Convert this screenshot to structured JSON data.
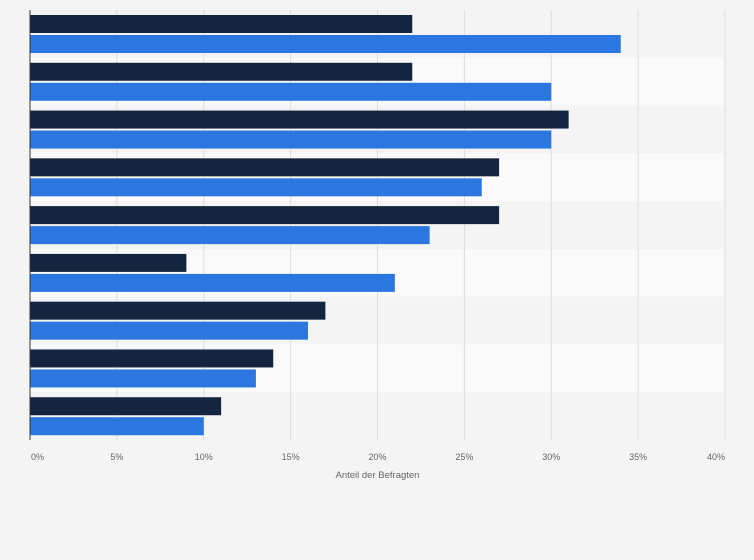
{
  "chart_data": {
    "type": "bar",
    "orientation": "horizontal",
    "categories": [
      "",
      "",
      "",
      "",
      "",
      "",
      "",
      "",
      ""
    ],
    "series": [
      {
        "color": "#14253f",
        "values": [
          22,
          22,
          31,
          27,
          27,
          9,
          17,
          14,
          11
        ]
      },
      {
        "color": "#2b77df",
        "values": [
          34,
          30,
          30,
          26,
          23,
          21,
          16,
          13,
          10
        ]
      }
    ],
    "xlim": [
      0,
      40
    ],
    "xticks": [
      0,
      5,
      10,
      15,
      20,
      25,
      30,
      35,
      40
    ],
    "xtick_labels": [
      "0%",
      "5%",
      "10%",
      "15%",
      "20%",
      "25%",
      "30%",
      "35%",
      "40%"
    ],
    "xlabel": "Anteil der Befragten",
    "ylabel": "",
    "title": "",
    "grid": "vertical",
    "legend": "none"
  }
}
